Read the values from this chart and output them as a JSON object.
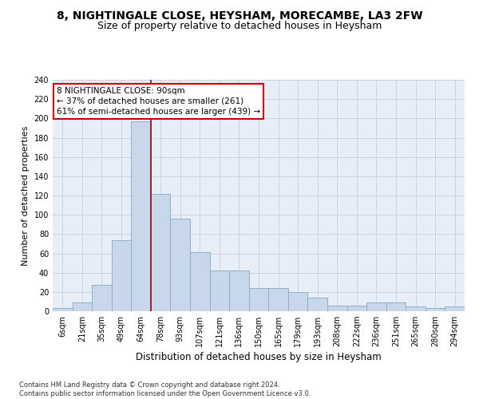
{
  "title1": "8, NIGHTINGALE CLOSE, HEYSHAM, MORECAMBE, LA3 2FW",
  "title2": "Size of property relative to detached houses in Heysham",
  "xlabel": "Distribution of detached houses by size in Heysham",
  "ylabel": "Number of detached properties",
  "bar_labels": [
    "6sqm",
    "21sqm",
    "35sqm",
    "49sqm",
    "64sqm",
    "78sqm",
    "93sqm",
    "107sqm",
    "121sqm",
    "136sqm",
    "150sqm",
    "165sqm",
    "179sqm",
    "193sqm",
    "208sqm",
    "222sqm",
    "236sqm",
    "251sqm",
    "265sqm",
    "280sqm",
    "294sqm"
  ],
  "bar_values": [
    3,
    9,
    27,
    74,
    197,
    122,
    96,
    61,
    42,
    42,
    24,
    24,
    20,
    14,
    6,
    6,
    9,
    9,
    5,
    3,
    5
  ],
  "bar_color": "#c8d8ea",
  "bar_edgecolor": "#8ab0cc",
  "vline_x": 4.5,
  "vline_color": "#990000",
  "annotation_text": "8 NIGHTINGALE CLOSE: 90sqm\n← 37% of detached houses are smaller (261)\n61% of semi-detached houses are larger (439) →",
  "annotation_box_color": "#ffffff",
  "annotation_box_edgecolor": "#cc0000",
  "ylim": [
    0,
    240
  ],
  "yticks": [
    0,
    20,
    40,
    60,
    80,
    100,
    120,
    140,
    160,
    180,
    200,
    220,
    240
  ],
  "grid_color": "#c8d4e4",
  "bg_color": "#e8eef8",
  "footer": "Contains HM Land Registry data © Crown copyright and database right 2024.\nContains public sector information licensed under the Open Government Licence v3.0.",
  "title1_fontsize": 10,
  "title2_fontsize": 9,
  "xlabel_fontsize": 8.5,
  "ylabel_fontsize": 8,
  "tick_fontsize": 7,
  "annotation_fontsize": 7.5,
  "footer_fontsize": 6
}
